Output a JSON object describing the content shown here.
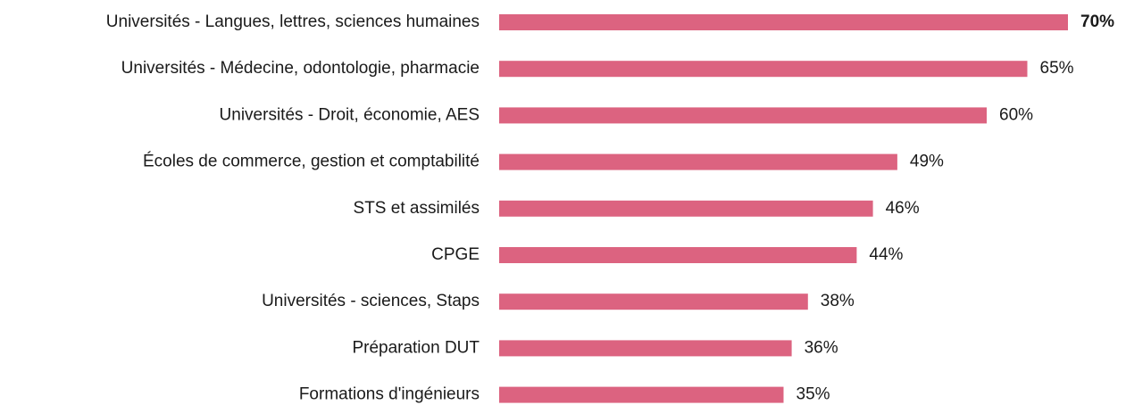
{
  "chart_data": {
    "type": "hbar",
    "categories": [
      "Universités - Langues, lettres, sciences humaines",
      "Universités - Médecine, odontologie, pharmacie",
      "Universités - Droit, économie, AES",
      "Écoles de commerce, gestion et comptabilité",
      "STS et assimilés",
      "CPGE",
      "Universités - sciences, Staps",
      "Préparation DUT",
      "Formations d'ingénieurs"
    ],
    "values": [
      70,
      65,
      60,
      49,
      46,
      44,
      38,
      36,
      35
    ],
    "value_labels": [
      "70%",
      "65%",
      "60%",
      "49%",
      "46%",
      "44%",
      "38%",
      "36%",
      "35%"
    ],
    "color": "#dc6380",
    "bold_label": 0
  }
}
